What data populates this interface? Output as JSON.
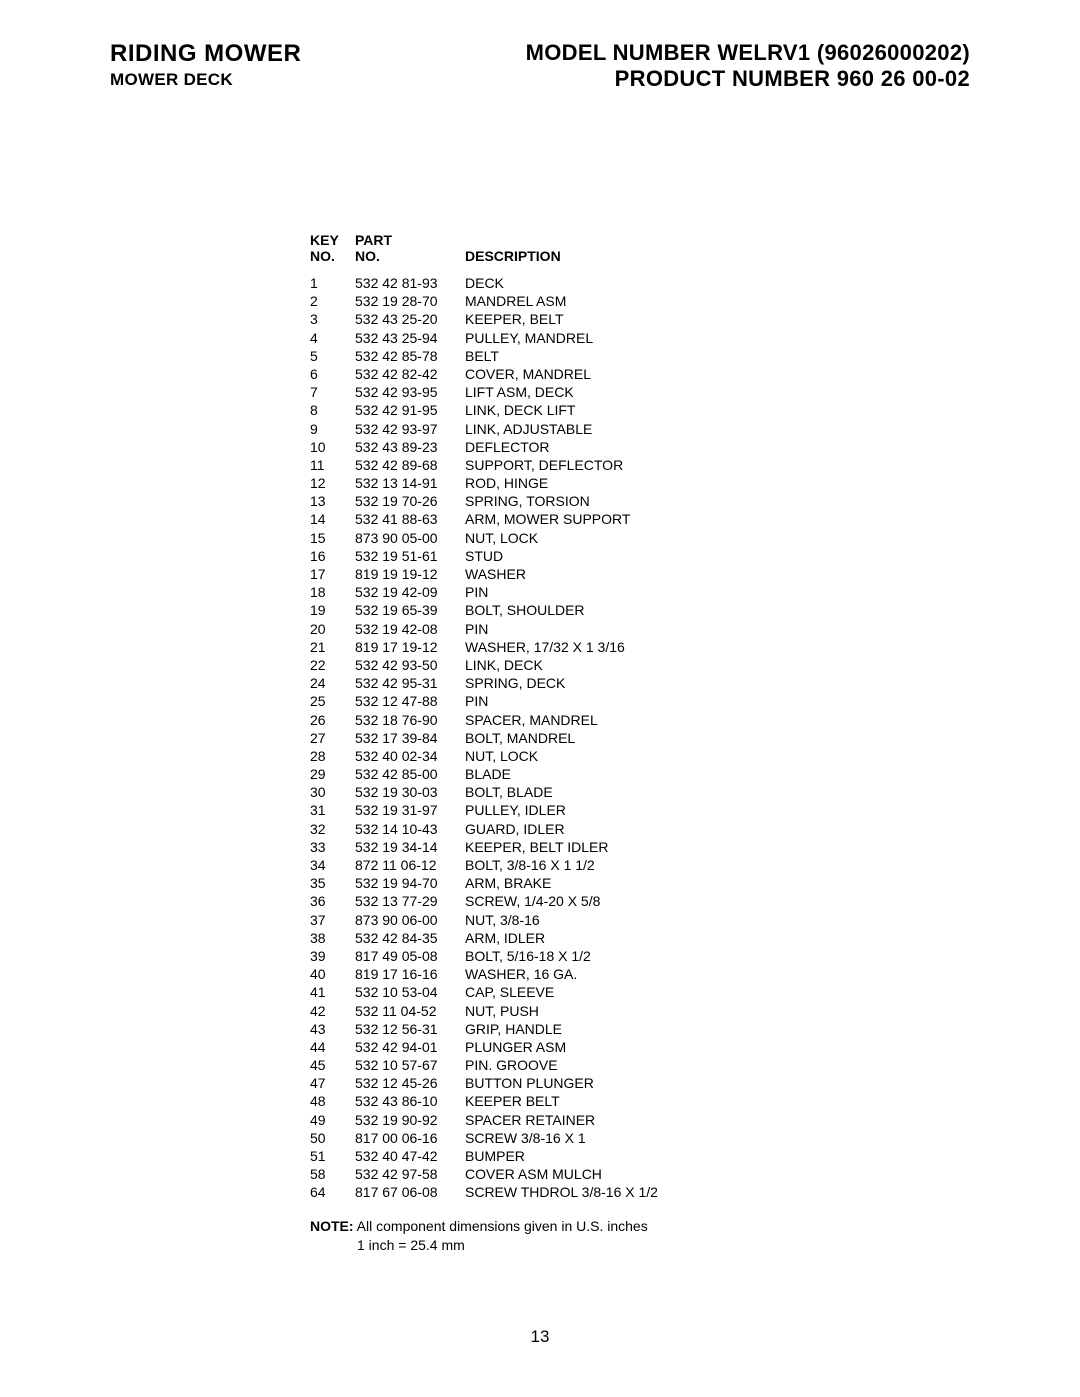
{
  "header": {
    "title": "RIDING MOWER",
    "subtitle": "MOWER DECK",
    "model": "MODEL NUMBER WELRV1 (96026000202)",
    "product": "PRODUCT NUMBER 960 26 00-02"
  },
  "table": {
    "headers": {
      "key_line1": "KEY",
      "key_line2": "NO.",
      "part_line1": "PART",
      "part_line2": "NO.",
      "desc": "DESCRIPTION"
    },
    "rows": [
      {
        "key": "1",
        "part": "532 42 81-93",
        "desc": "DECK"
      },
      {
        "key": "2",
        "part": "532 19 28-70",
        "desc": "MANDREL ASM"
      },
      {
        "key": "3",
        "part": "532 43 25-20",
        "desc": "KEEPER, BELT"
      },
      {
        "key": "4",
        "part": "532 43 25-94",
        "desc": "PULLEY, MANDREL"
      },
      {
        "key": "5",
        "part": "532 42 85-78",
        "desc": "BELT"
      },
      {
        "key": "6",
        "part": "532 42 82-42",
        "desc": "COVER, MANDREL"
      },
      {
        "key": "7",
        "part": "532 42 93-95",
        "desc": "LIFT ASM, DECK"
      },
      {
        "key": "8",
        "part": "532 42 91-95",
        "desc": "LINK, DECK LIFT"
      },
      {
        "key": "9",
        "part": "532 42 93-97",
        "desc": "LINK, ADJUSTABLE"
      },
      {
        "key": "10",
        "part": "532 43 89-23",
        "desc": "DEFLECTOR"
      },
      {
        "key": "11",
        "part": "532 42 89-68",
        "desc": "SUPPORT, DEFLECTOR"
      },
      {
        "key": "12",
        "part": "532 13 14-91",
        "desc": "ROD, HINGE"
      },
      {
        "key": "13",
        "part": "532 19 70-26",
        "desc": "SPRING, TORSION"
      },
      {
        "key": "14",
        "part": "532 41 88-63",
        "desc": "ARM, MOWER SUPPORT"
      },
      {
        "key": "15",
        "part": "873 90 05-00",
        "desc": "NUT, LOCK"
      },
      {
        "key": "16",
        "part": "532 19 51-61",
        "desc": "STUD"
      },
      {
        "key": "17",
        "part": "819 19 19-12",
        "desc": "WASHER"
      },
      {
        "key": "18",
        "part": "532 19 42-09",
        "desc": "PIN"
      },
      {
        "key": "19",
        "part": "532 19 65-39",
        "desc": "BOLT, SHOULDER"
      },
      {
        "key": "20",
        "part": "532 19 42-08",
        "desc": "PIN"
      },
      {
        "key": "21",
        "part": "819 17 19-12",
        "desc": "WASHER, 17/32 X 1 3/16"
      },
      {
        "key": "22",
        "part": "532 42 93-50",
        "desc": "LINK, DECK"
      },
      {
        "key": "24",
        "part": "532 42 95-31",
        "desc": "SPRING, DECK"
      },
      {
        "key": "25",
        "part": "532 12 47-88",
        "desc": "PIN"
      },
      {
        "key": "26",
        "part": "532 18 76-90",
        "desc": "SPACER, MANDREL"
      },
      {
        "key": "27",
        "part": "532 17 39-84",
        "desc": "BOLT, MANDREL"
      },
      {
        "key": "28",
        "part": "532 40 02-34",
        "desc": "NUT, LOCK"
      },
      {
        "key": "29",
        "part": "532 42 85-00",
        "desc": "BLADE"
      },
      {
        "key": "30",
        "part": "532 19 30-03",
        "desc": "BOLT, BLADE"
      },
      {
        "key": "31",
        "part": "532 19 31-97",
        "desc": "PULLEY, IDLER"
      },
      {
        "key": "32",
        "part": "532 14 10-43",
        "desc": "GUARD, IDLER"
      },
      {
        "key": "33",
        "part": "532 19 34-14",
        "desc": "KEEPER, BELT IDLER"
      },
      {
        "key": "34",
        "part": "872 11 06-12",
        "desc": "BOLT, 3/8-16 X 1 1/2"
      },
      {
        "key": "35",
        "part": "532 19 94-70",
        "desc": "ARM, BRAKE"
      },
      {
        "key": "36",
        "part": "532 13 77-29",
        "desc": "SCREW, 1/4-20 X 5/8"
      },
      {
        "key": "37",
        "part": "873 90 06-00",
        "desc": "NUT, 3/8-16"
      },
      {
        "key": "38",
        "part": "532 42 84-35",
        "desc": "ARM, IDLER"
      },
      {
        "key": "39",
        "part": "817 49 05-08",
        "desc": "BOLT, 5/16-18 X 1/2"
      },
      {
        "key": "40",
        "part": "819 17 16-16",
        "desc": "WASHER, 16 GA."
      },
      {
        "key": "41",
        "part": "532 10 53-04",
        "desc": "CAP, SLEEVE"
      },
      {
        "key": "42",
        "part": "532 11 04-52",
        "desc": "NUT, PUSH"
      },
      {
        "key": "43",
        "part": "532 12 56-31",
        "desc": "GRIP, HANDLE"
      },
      {
        "key": "44",
        "part": "532 42 94-01",
        "desc": "PLUNGER ASM"
      },
      {
        "key": "45",
        "part": "532 10 57-67",
        "desc": "PIN. GROOVE"
      },
      {
        "key": "47",
        "part": "532 12 45-26",
        "desc": "BUTTON PLUNGER"
      },
      {
        "key": "48",
        "part": "532 43 86-10",
        "desc": "KEEPER BELT"
      },
      {
        "key": "49",
        "part": "532 19 90-92",
        "desc": "SPACER RETAINER"
      },
      {
        "key": "50",
        "part": "817 00 06-16",
        "desc": "SCREW 3/8-16 X 1"
      },
      {
        "key": "51",
        "part": "532 40 47-42",
        "desc": "BUMPER"
      },
      {
        "key": "58",
        "part": "532 42 97-58",
        "desc": "COVER ASM MULCH"
      },
      {
        "key": "64",
        "part": "817 67 06-08",
        "desc": "SCREW THDROL 3/8-16 X 1/2"
      }
    ]
  },
  "note": {
    "label": "NOTE:",
    "line1": " All component dimensions given in U.S. inches",
    "line2": "1 inch = 25.4 mm"
  },
  "page_number": "13"
}
